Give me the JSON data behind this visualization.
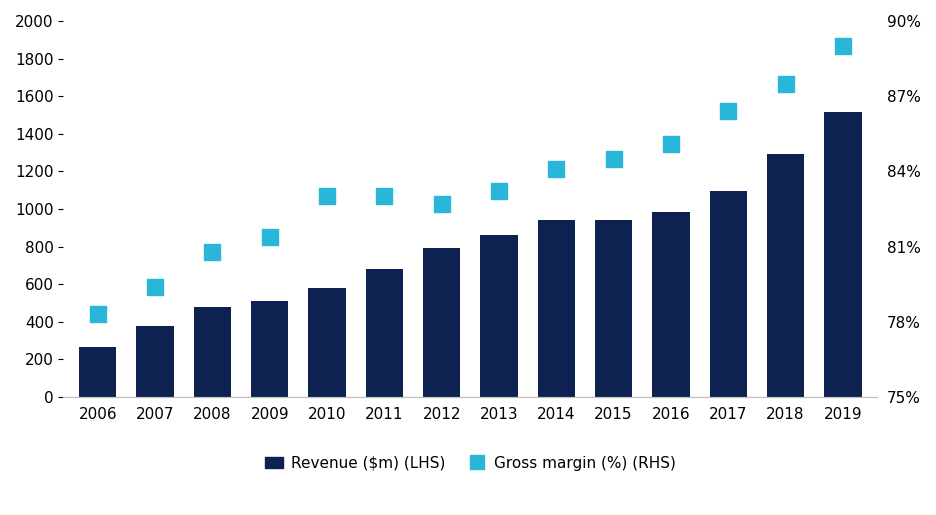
{
  "years": [
    2006,
    2007,
    2008,
    2009,
    2010,
    2011,
    2012,
    2013,
    2014,
    2015,
    2016,
    2017,
    2018,
    2019
  ],
  "revenue": [
    265,
    380,
    480,
    510,
    580,
    680,
    795,
    860,
    940,
    940,
    985,
    1095,
    1295,
    1515
  ],
  "gross_margin_pct": [
    78.3,
    79.4,
    80.8,
    81.4,
    83.0,
    83.0,
    82.7,
    83.2,
    84.1,
    84.5,
    85.1,
    86.4,
    87.5,
    89.0
  ],
  "bar_color": "#0d2250",
  "marker_color": "#29b6d8",
  "lhs_ylim": [
    0,
    2000
  ],
  "lhs_yticks": [
    0,
    200,
    400,
    600,
    800,
    1000,
    1200,
    1400,
    1600,
    1800,
    2000
  ],
  "rhs_ylim": [
    75,
    90
  ],
  "rhs_yticks": [
    75,
    78,
    81,
    84,
    87,
    90
  ],
  "legend_labels": [
    "Revenue ($m) (LHS)",
    "Gross margin (%) (RHS)"
  ],
  "background_color": "#ffffff",
  "spine_color": "#c0c0c0",
  "bar_width": 0.65,
  "marker_size": 130,
  "fontsize": 11
}
